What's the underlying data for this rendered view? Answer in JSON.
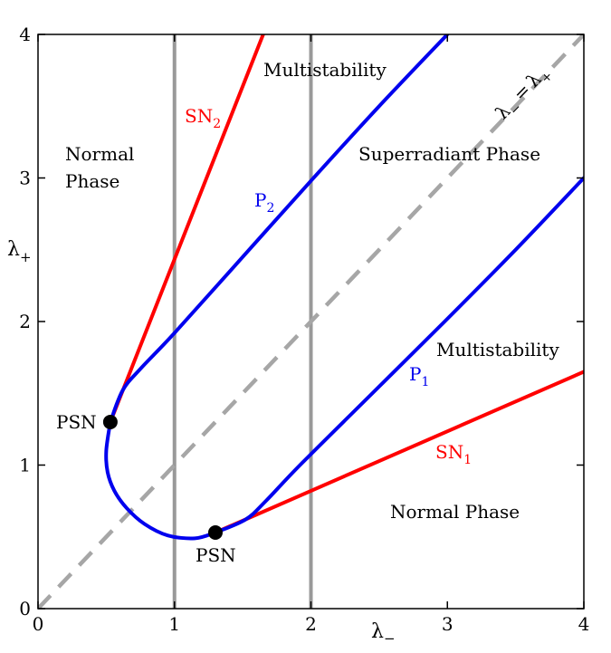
{
  "chart_data": {
    "type": "line",
    "xlabel": "λ",
    "xlabel_sub": "−",
    "ylabel": "λ",
    "ylabel_sub": "+",
    "xlim": [
      0,
      4
    ],
    "ylim": [
      0,
      4
    ],
    "xticks": [
      "0",
      "1",
      "2",
      "3",
      "4"
    ],
    "yticks": [
      "0",
      "1",
      "2",
      "3",
      "4"
    ],
    "grid": false,
    "colors": {
      "sn": "#ff0000",
      "p": "#0000ee",
      "vertical": "#999999",
      "diagonal": "#a6a6a6",
      "point": "#000000"
    },
    "series": [
      {
        "name": "SN",
        "sub": "2",
        "color": "#ff0000",
        "x": [
          0.53,
          1.65
        ],
        "y": [
          1.3,
          4.0
        ]
      },
      {
        "name": "SN",
        "sub": "1",
        "color": "#ff0000",
        "x": [
          1.3,
          4.0
        ],
        "y": [
          0.53,
          1.65
        ]
      },
      {
        "name": "P",
        "sub": "2",
        "color": "#0000ee",
        "x": [
          0.53,
          0.62,
          0.75,
          1.0,
          1.5,
          2.0,
          2.5,
          3.0
        ],
        "y": [
          1.3,
          1.52,
          1.67,
          1.92,
          2.45,
          2.98,
          3.5,
          4.0
        ]
      },
      {
        "name": "P",
        "sub": "1",
        "color": "#0000ee",
        "x": [
          1.3,
          1.52,
          1.67,
          1.92,
          2.45,
          2.98,
          3.5,
          4.0
        ],
        "y": [
          0.53,
          0.62,
          0.75,
          1.0,
          1.5,
          2.0,
          2.5,
          3.0
        ]
      },
      {
        "name": "",
        "color": "#0000ee",
        "x": [
          0.53,
          0.5,
          0.51,
          0.56,
          0.65,
          0.78,
          0.95,
          1.15,
          1.3
        ],
        "y": [
          1.3,
          1.1,
          0.95,
          0.82,
          0.7,
          0.59,
          0.51,
          0.49,
          0.53
        ]
      }
    ],
    "verticals": [
      1,
      2
    ],
    "diagonal": {
      "label": "λ",
      "sub_left": "−",
      "eq": "=",
      "label2": "λ",
      "sub_right": "+"
    },
    "points": [
      {
        "label": "PSN",
        "x": 0.53,
        "y": 1.3
      },
      {
        "label": "PSN",
        "x": 1.3,
        "y": 0.53
      }
    ],
    "annotations": {
      "normal_phase_line1": "Normal",
      "normal_phase_line2": "Phase",
      "multistability_top": "Multistability",
      "superradiant": "Superradiant Phase",
      "multistability_right": "Multistability",
      "normal_phase_bottom": "Normal Phase"
    }
  }
}
